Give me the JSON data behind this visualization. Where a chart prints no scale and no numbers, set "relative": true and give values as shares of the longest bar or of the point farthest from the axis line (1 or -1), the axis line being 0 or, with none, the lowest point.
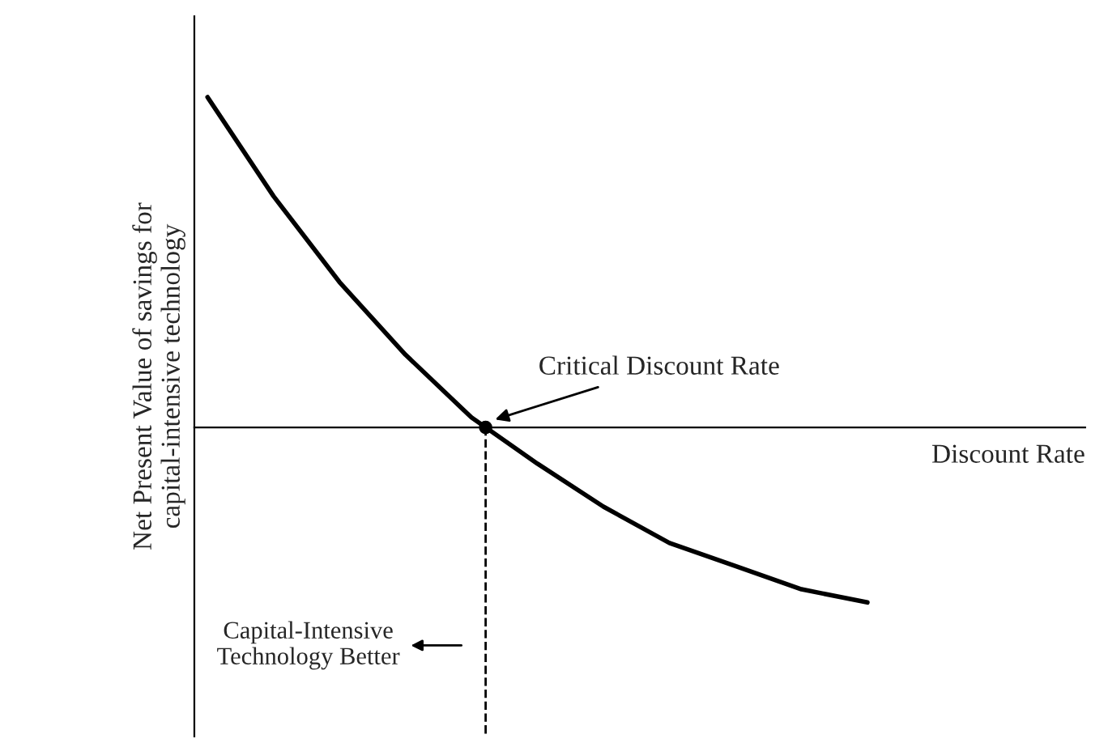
{
  "chart_data": {
    "type": "line",
    "relative": true,
    "ylabel": "Net Present Value of savings for\ncapital-intensive technology",
    "xlabel": "Discount Rate",
    "categories": [
      null,
      null,
      null,
      null,
      null,
      null,
      null,
      null,
      null,
      null,
      null
    ],
    "series": [
      {
        "color": "#000000",
        "values": [
          1.0,
          0.7,
          0.44,
          0.22,
          0.03,
          -0.11,
          -0.24,
          -0.35,
          -0.42,
          -0.49,
          -0.53
        ]
      }
    ],
    "annotations": [
      "Critical Discount Rate",
      "Capital-Intensive\nTechnology Better"
    ],
    "legend": false,
    "marker": "none",
    "line_style": "solid"
  }
}
